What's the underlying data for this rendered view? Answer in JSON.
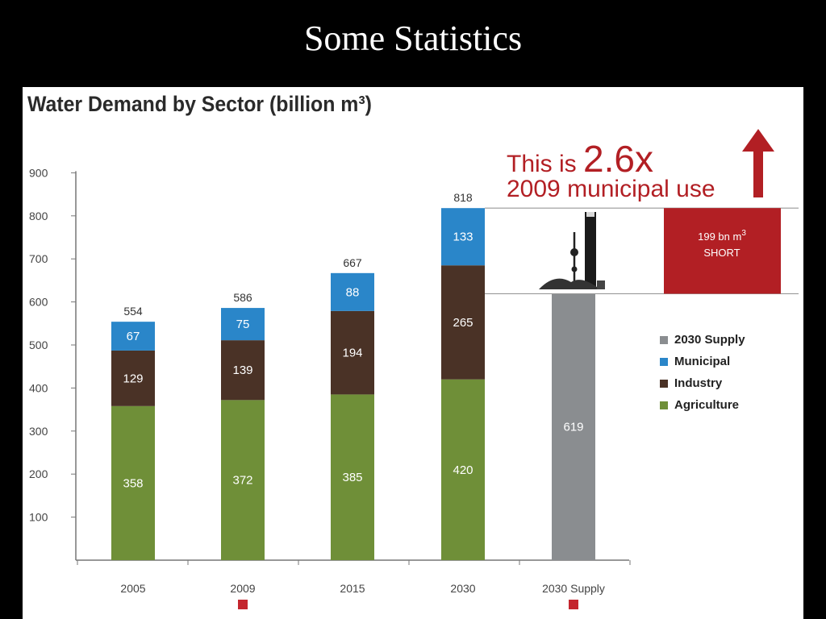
{
  "slide": {
    "title": "Some Statistics"
  },
  "chart_data": {
    "type": "bar",
    "stacked": true,
    "title": "Water Demand by Sector (billion m³)",
    "categories": [
      "2005",
      "2009",
      "2015",
      "2030",
      "2030 Supply"
    ],
    "ylim": [
      0,
      900
    ],
    "yticks": [
      100,
      200,
      300,
      400,
      500,
      600,
      700,
      800,
      900
    ],
    "grid": false,
    "legend_position": "right",
    "series": [
      {
        "name": "Agriculture",
        "color": "#6f8f38",
        "values": [
          358,
          372,
          385,
          420,
          null
        ]
      },
      {
        "name": "Industry",
        "color": "#4a3226",
        "values": [
          129,
          139,
          194,
          265,
          null
        ]
      },
      {
        "name": "Municipal",
        "color": "#2a86c9",
        "values": [
          67,
          75,
          88,
          133,
          null
        ]
      },
      {
        "name": "2030 Supply",
        "color": "#8a8d90",
        "values": [
          null,
          null,
          null,
          null,
          619
        ]
      }
    ],
    "totals": [
      554,
      586,
      667,
      818,
      null
    ],
    "legend_order": [
      "2030 Supply",
      "Municipal",
      "Industry",
      "Agriculture"
    ],
    "shortfall": {
      "value": 199,
      "label_line1": "199 bn m",
      "label_sup": "3",
      "label_line2": "SHORT",
      "color": "#b21f24"
    },
    "callout": {
      "prefix": "This is ",
      "multiplier": "2.6x",
      "line2": "2009 municipal use",
      "color": "#b21f24"
    },
    "marker_color": "#c4262e",
    "marked_categories": [
      "2009",
      "2030 Supply"
    ]
  }
}
